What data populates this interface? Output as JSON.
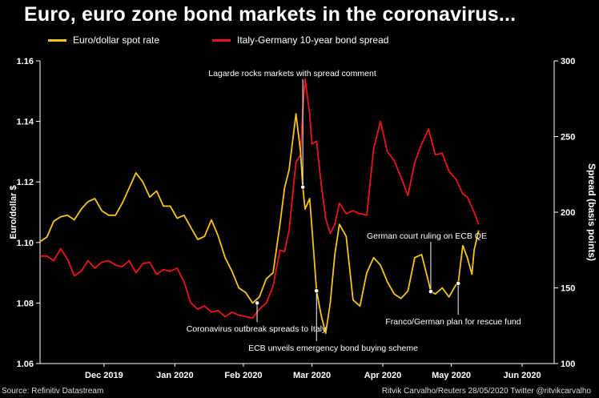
{
  "title": "Euro, euro zone bond markets in the coronavirus...",
  "source": "Source: Refinitiv Datastream",
  "credit": "Ritvik Carvalho/Reuters 28/05/2020 Twitter @ritvikcarvalho",
  "colors": {
    "background": "#000000",
    "euro": "#f5c518",
    "spread": "#e8161c",
    "axis": "#ffffff",
    "grid": "#444444"
  },
  "chart_data": {
    "type": "line",
    "title": "Euro, euro zone bond markets in the coronavirus...",
    "x_range": [
      "2019-11-18",
      "2020-06-30"
    ],
    "x_ticks": [
      {
        "label": "Dec 2019",
        "date": "2019-12-16"
      },
      {
        "label": "Jan 2020",
        "date": "2020-01-16"
      },
      {
        "label": "Feb 2020",
        "date": "2020-02-15"
      },
      {
        "label": "Mar 2020",
        "date": "2020-03-16"
      },
      {
        "label": "Apr 2020",
        "date": "2020-04-16"
      },
      {
        "label": "May 2020",
        "date": "2020-05-16"
      },
      {
        "label": "Jun 2020",
        "date": "2020-06-16"
      }
    ],
    "y_left": {
      "label": "Euro/dollar $",
      "range": [
        1.06,
        1.16
      ],
      "ticks": [
        "1.06",
        "1.08",
        "1.10",
        "1.12",
        "1.14",
        "1.16"
      ]
    },
    "y_right": {
      "label": "Spread (basis points)",
      "range": [
        100,
        300
      ],
      "ticks": [
        "100",
        "150",
        "200",
        "250",
        "300"
      ]
    },
    "series": [
      {
        "name": "Euro/dollar spot rate",
        "axis": "left",
        "points": [
          [
            "2019-11-18",
            1.1003
          ],
          [
            "2019-11-21",
            1.1018
          ],
          [
            "2019-11-24",
            1.107
          ],
          [
            "2019-11-27",
            1.1085
          ],
          [
            "2019-11-30",
            1.109
          ],
          [
            "2019-12-03",
            1.1075
          ],
          [
            "2019-12-06",
            1.111
          ],
          [
            "2019-12-09",
            1.1135
          ],
          [
            "2019-12-12",
            1.1145
          ],
          [
            "2019-12-15",
            1.1105
          ],
          [
            "2019-12-18",
            1.109
          ],
          [
            "2019-12-21",
            1.109
          ],
          [
            "2019-12-24",
            1.113
          ],
          [
            "2019-12-27",
            1.118
          ],
          [
            "2019-12-30",
            1.123
          ],
          [
            "2020-01-02",
            1.12
          ],
          [
            "2020-01-05",
            1.115
          ],
          [
            "2020-01-08",
            1.117
          ],
          [
            "2020-01-11",
            1.112
          ],
          [
            "2020-01-14",
            1.112
          ],
          [
            "2020-01-17",
            1.108
          ],
          [
            "2020-01-20",
            1.109
          ],
          [
            "2020-01-23",
            1.105
          ],
          [
            "2020-01-26",
            1.101
          ],
          [
            "2020-01-29",
            1.102
          ],
          [
            "2020-02-01",
            1.1075
          ],
          [
            "2020-02-04",
            1.102
          ],
          [
            "2020-02-07",
            1.095
          ],
          [
            "2020-02-10",
            1.0905
          ],
          [
            "2020-02-13",
            1.085
          ],
          [
            "2020-02-16",
            1.0835
          ],
          [
            "2020-02-19",
            1.08
          ],
          [
            "2020-02-22",
            1.082
          ],
          [
            "2020-02-25",
            1.088
          ],
          [
            "2020-02-28",
            1.09
          ],
          [
            "2020-03-02",
            1.106
          ],
          [
            "2020-03-04",
            1.118
          ],
          [
            "2020-03-06",
            1.124
          ],
          [
            "2020-03-09",
            1.1425
          ],
          [
            "2020-03-11",
            1.13
          ],
          [
            "2020-03-12",
            1.1183
          ],
          [
            "2020-03-13",
            1.111
          ],
          [
            "2020-03-15",
            1.1145
          ],
          [
            "2020-03-16",
            1.105
          ],
          [
            "2020-03-18",
            1.084
          ],
          [
            "2020-03-20",
            1.076
          ],
          [
            "2020-03-22",
            1.07
          ],
          [
            "2020-03-24",
            1.08
          ],
          [
            "2020-03-26",
            1.096
          ],
          [
            "2020-03-28",
            1.106
          ],
          [
            "2020-03-31",
            1.102
          ],
          [
            "2020-04-03",
            1.081
          ],
          [
            "2020-04-06",
            1.079
          ],
          [
            "2020-04-09",
            1.09
          ],
          [
            "2020-04-12",
            1.095
          ],
          [
            "2020-04-15",
            1.0925
          ],
          [
            "2020-04-18",
            1.087
          ],
          [
            "2020-04-21",
            1.083
          ],
          [
            "2020-04-24",
            1.0815
          ],
          [
            "2020-04-27",
            1.084
          ],
          [
            "2020-04-30",
            1.095
          ],
          [
            "2020-05-03",
            1.096
          ],
          [
            "2020-05-06",
            1.087
          ],
          [
            "2020-05-07",
            1.0838
          ],
          [
            "2020-05-09",
            1.083
          ],
          [
            "2020-05-12",
            1.085
          ],
          [
            "2020-05-15",
            1.082
          ],
          [
            "2020-05-18",
            1.086
          ],
          [
            "2020-05-19",
            1.0865
          ],
          [
            "2020-05-21",
            1.099
          ],
          [
            "2020-05-23",
            1.095
          ],
          [
            "2020-05-25",
            1.0895
          ],
          [
            "2020-05-26",
            1.0975
          ],
          [
            "2020-05-28",
            1.104
          ]
        ]
      },
      {
        "name": "Italy-Germany 10-year bond spread",
        "axis": "right",
        "points": [
          [
            "2019-11-18",
            171
          ],
          [
            "2019-11-21",
            171
          ],
          [
            "2019-11-24",
            168
          ],
          [
            "2019-11-27",
            176
          ],
          [
            "2019-11-30",
            169
          ],
          [
            "2019-12-03",
            158
          ],
          [
            "2019-12-06",
            161
          ],
          [
            "2019-12-09",
            168
          ],
          [
            "2019-12-12",
            163
          ],
          [
            "2019-12-15",
            167
          ],
          [
            "2019-12-18",
            168
          ],
          [
            "2019-12-21",
            165
          ],
          [
            "2019-12-24",
            164
          ],
          [
            "2019-12-27",
            168
          ],
          [
            "2019-12-30",
            160
          ],
          [
            "2020-01-02",
            166
          ],
          [
            "2020-01-05",
            167
          ],
          [
            "2020-01-08",
            159
          ],
          [
            "2020-01-11",
            162
          ],
          [
            "2020-01-14",
            161
          ],
          [
            "2020-01-17",
            163
          ],
          [
            "2020-01-20",
            154
          ],
          [
            "2020-01-23",
            140
          ],
          [
            "2020-01-26",
            136
          ],
          [
            "2020-01-29",
            138
          ],
          [
            "2020-02-01",
            134
          ],
          [
            "2020-02-04",
            135
          ],
          [
            "2020-02-07",
            131
          ],
          [
            "2020-02-10",
            134
          ],
          [
            "2020-02-13",
            132
          ],
          [
            "2020-02-16",
            131
          ],
          [
            "2020-02-19",
            130
          ],
          [
            "2020-02-22",
            136
          ],
          [
            "2020-02-25",
            140
          ],
          [
            "2020-02-28",
            151
          ],
          [
            "2020-03-02",
            175
          ],
          [
            "2020-03-04",
            174
          ],
          [
            "2020-03-06",
            188
          ],
          [
            "2020-03-09",
            233
          ],
          [
            "2020-03-11",
            238
          ],
          [
            "2020-03-12",
            268
          ],
          [
            "2020-03-13",
            288
          ],
          [
            "2020-03-15",
            265
          ],
          [
            "2020-03-16",
            245
          ],
          [
            "2020-03-18",
            247
          ],
          [
            "2020-03-20",
            219
          ],
          [
            "2020-03-22",
            196
          ],
          [
            "2020-03-24",
            186
          ],
          [
            "2020-03-26",
            192
          ],
          [
            "2020-03-28",
            206
          ],
          [
            "2020-03-31",
            199
          ],
          [
            "2020-04-03",
            201
          ],
          [
            "2020-04-06",
            199
          ],
          [
            "2020-04-09",
            198
          ],
          [
            "2020-04-12",
            242
          ],
          [
            "2020-04-15",
            260
          ],
          [
            "2020-04-18",
            240
          ],
          [
            "2020-04-21",
            234
          ],
          [
            "2020-04-24",
            223
          ],
          [
            "2020-04-27",
            211
          ],
          [
            "2020-04-30",
            233
          ],
          [
            "2020-05-03",
            245
          ],
          [
            "2020-05-06",
            255
          ],
          [
            "2020-05-09",
            238
          ],
          [
            "2020-05-12",
            239
          ],
          [
            "2020-05-15",
            227
          ],
          [
            "2020-05-18",
            222
          ],
          [
            "2020-05-21",
            212
          ],
          [
            "2020-05-23",
            210
          ],
          [
            "2020-05-26",
            200
          ],
          [
            "2020-05-28",
            192
          ]
        ]
      }
    ],
    "annotations": [
      {
        "text": "Lagarde rocks markets with spread comment",
        "date": "2020-03-12",
        "value": 1.1183,
        "axis": "left"
      },
      {
        "text": "Coronavirus outbreak spreads to Italy",
        "date": "2020-02-21",
        "value": 1.08,
        "axis": "left"
      },
      {
        "text": "ECB unveils emergency bond buying scheme",
        "date": "2020-03-18",
        "value": 1.084,
        "axis": "left"
      },
      {
        "text": "German court ruling on ECB QE",
        "date": "2020-05-07",
        "value": 1.0838,
        "axis": "left"
      },
      {
        "text": "Franco/German plan for rescue fund",
        "date": "2020-05-19",
        "value": 1.0865,
        "axis": "left"
      }
    ]
  }
}
